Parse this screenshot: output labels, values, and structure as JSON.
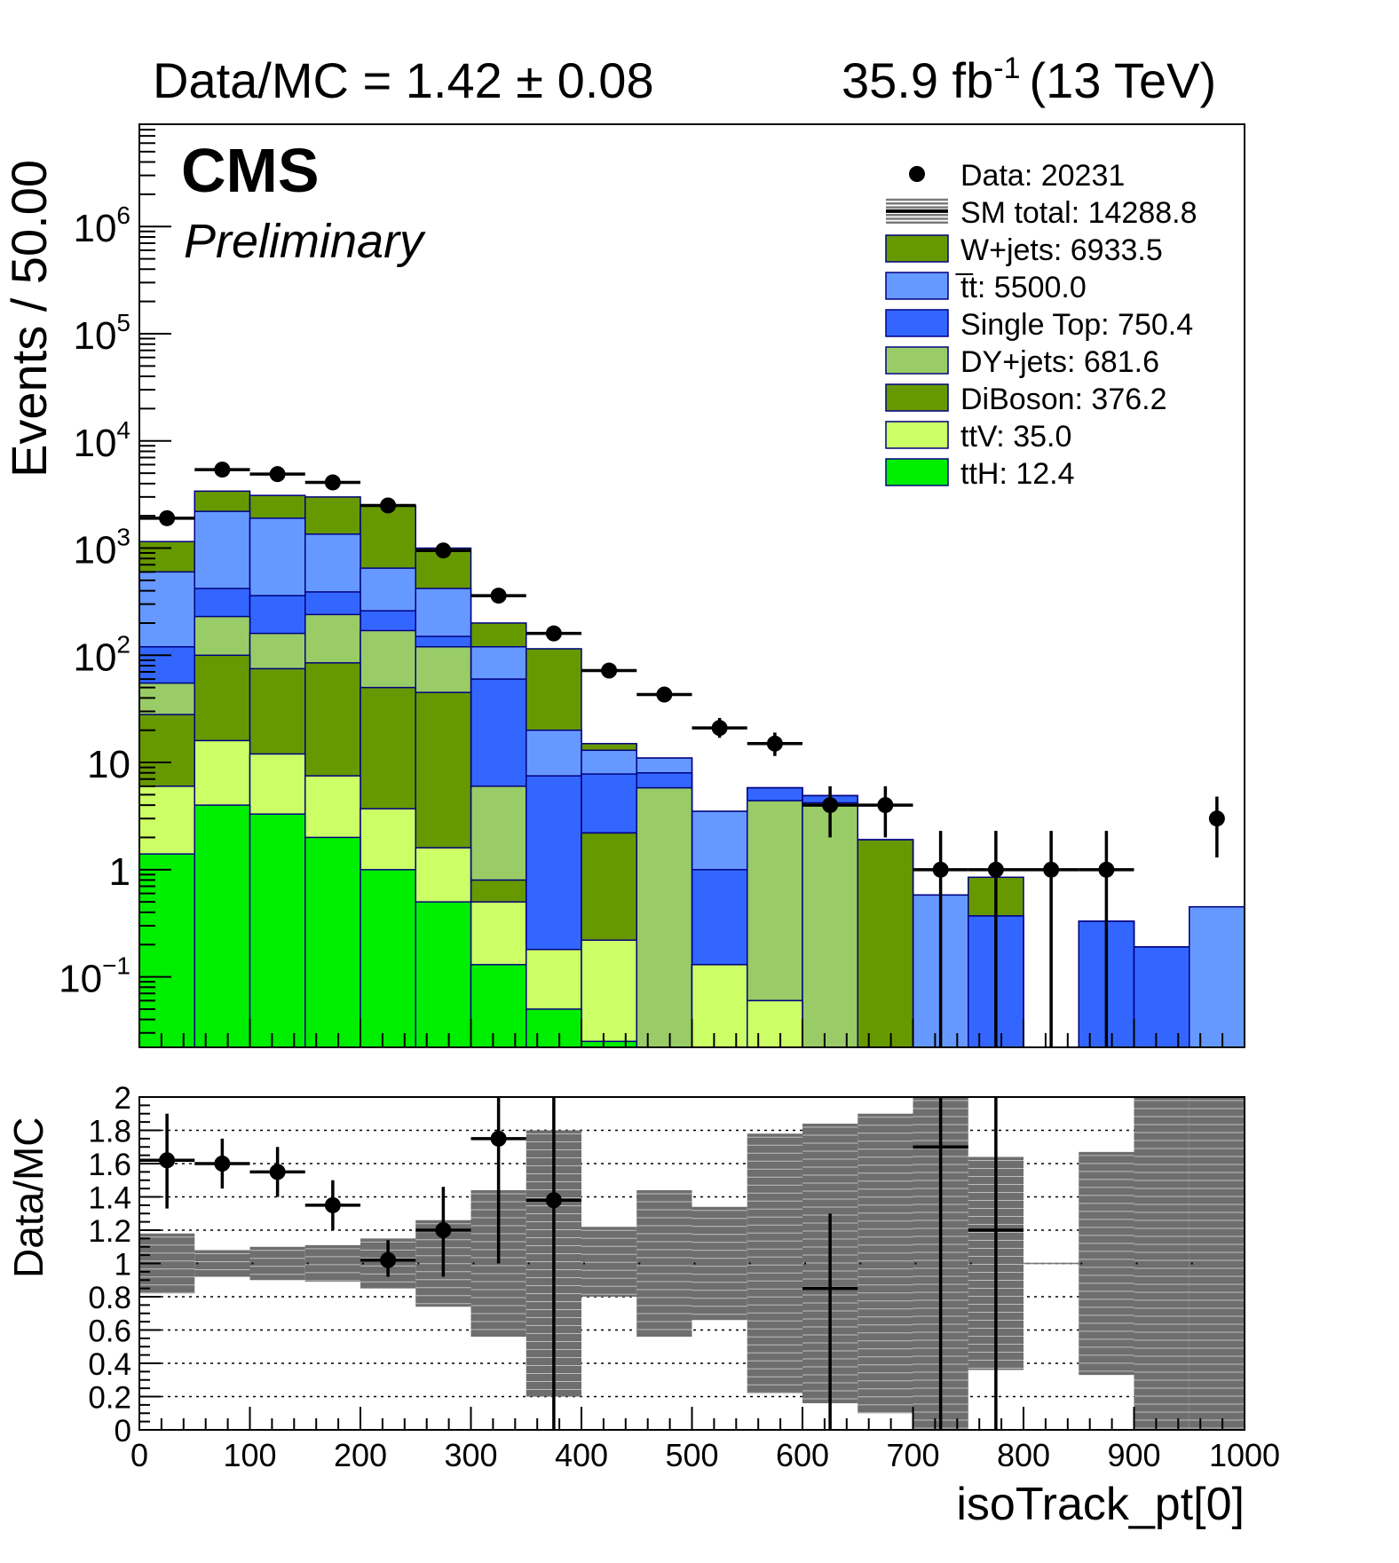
{
  "header": {
    "ratio_text": "Data/MC = 1.42 ± 0.08",
    "lumi_value": "35.9 fb",
    "lumi_exp": "-1",
    "lumi_energy": "(13 TeV)"
  },
  "cms_label": "CMS",
  "preliminary_label": "Preliminary",
  "chart_data": [
    {
      "type": "bar",
      "subtype": "stacked-histogram",
      "ylabel": "Events / 50.00",
      "yscale": "log",
      "xlim": [
        0,
        1000
      ],
      "ylim": [
        0.022,
        9000000
      ],
      "bin_edges": [
        0,
        50,
        100,
        150,
        200,
        250,
        300,
        350,
        400,
        450,
        500,
        550,
        600,
        650,
        700,
        750,
        800,
        850,
        900,
        950,
        1000
      ],
      "y_tick_labels": [
        {
          "value": 0.1,
          "base": "10",
          "exp": "−1"
        },
        {
          "value": 1,
          "base": "1",
          "exp": ""
        },
        {
          "value": 10,
          "base": "10",
          "exp": ""
        },
        {
          "value": 100,
          "base": "10",
          "exp": "2"
        },
        {
          "value": 1000,
          "base": "10",
          "exp": "3"
        },
        {
          "value": 10000,
          "base": "10",
          "exp": "4"
        },
        {
          "value": 100000,
          "base": "10",
          "exp": "5"
        },
        {
          "value": 1000000,
          "base": "10",
          "exp": "6"
        }
      ],
      "legend": {
        "placement": "top-right",
        "entries": [
          {
            "key": "data",
            "label": "Data: 20231"
          },
          {
            "key": "sm",
            "label": "SM total: 14288.8"
          },
          {
            "key": "wjets",
            "label": "W+jets: 6933.5",
            "color": "#669900"
          },
          {
            "key": "ttbar",
            "label": "t̅t: 5500.0",
            "color": "#6699ff"
          },
          {
            "key": "singletop",
            "label": "Single Top: 750.4",
            "color": "#3366ff"
          },
          {
            "key": "dy",
            "label": "DY+jets: 681.6",
            "color": "#99cc66"
          },
          {
            "key": "diboson",
            "label": "DiBoson: 376.2",
            "color": "#669900"
          },
          {
            "key": "ttv",
            "label": "ttV: 35.0",
            "color": "#ccff66"
          },
          {
            "key": "tth",
            "label": "ttH: 12.4",
            "color": "#00ee00"
          }
        ]
      },
      "series_stack_order": [
        "tth",
        "ttv",
        "diboson",
        "dy",
        "singletop",
        "ttbar",
        "wjets"
      ],
      "series": [
        {
          "key": "tth",
          "color": "#00ee00",
          "cumulative": [
            1.4,
            4.0,
            3.3,
            2.0,
            1.0,
            0.5,
            0.13,
            0.05,
            0.025,
            0,
            0,
            0,
            0,
            0,
            0,
            0,
            0,
            0,
            0,
            0
          ]
        },
        {
          "key": "ttv",
          "color": "#ccff66",
          "cumulative": [
            6.0,
            16.0,
            12.0,
            7.5,
            3.7,
            1.6,
            0.5,
            0.18,
            0.22,
            0,
            0.13,
            0.06,
            0,
            0,
            0,
            0,
            0,
            0,
            0,
            0
          ]
        },
        {
          "key": "diboson",
          "color": "#669900",
          "cumulative": [
            28,
            100,
            75,
            85,
            50,
            45,
            0.8,
            0.18,
            2.2,
            0,
            0.13,
            0.06,
            0,
            1.9,
            0,
            0,
            0,
            0,
            0,
            0
          ]
        },
        {
          "key": "dy",
          "color": "#99cc66",
          "cumulative": [
            55,
            230,
            160,
            240,
            170,
            120,
            6,
            0.18,
            2.2,
            5.8,
            0.13,
            4.4,
            4.2,
            1.9,
            0,
            0,
            0,
            0,
            0,
            0
          ]
        },
        {
          "key": "singletop",
          "color": "#3366ff",
          "cumulative": [
            120,
            420,
            360,
            390,
            260,
            150,
            60,
            7.5,
            7.8,
            8.0,
            1.0,
            5.8,
            4.9,
            1.9,
            0,
            0.37,
            0,
            0.33,
            0.19,
            0
          ]
        },
        {
          "key": "ttbar",
          "color": "#6699ff",
          "cumulative": [
            600,
            2200,
            1900,
            1350,
            650,
            420,
            120,
            20,
            13,
            11,
            3.5,
            5.8,
            4.9,
            1.9,
            0.58,
            0.37,
            0,
            0.33,
            0.19,
            0.45
          ]
        },
        {
          "key": "wjets",
          "color": "#669900",
          "cumulative": [
            1150,
            3400,
            3100,
            3000,
            2500,
            1000,
            200,
            115,
            15,
            11,
            3.5,
            5.8,
            4.9,
            1.9,
            0.58,
            0.85,
            0,
            0.33,
            0.19,
            0.45
          ]
        }
      ],
      "data_points": [
        {
          "x": 25,
          "y": 1900,
          "lo": 1850,
          "hi": 1950
        },
        {
          "x": 75,
          "y": 5400,
          "lo": 5300,
          "hi": 5500
        },
        {
          "x": 125,
          "y": 4900,
          "lo": 4800,
          "hi": 5000
        },
        {
          "x": 175,
          "y": 4100,
          "lo": 4000,
          "hi": 4200
        },
        {
          "x": 225,
          "y": 2500,
          "lo": 2440,
          "hi": 2560
        },
        {
          "x": 275,
          "y": 950,
          "lo": 920,
          "hi": 980
        },
        {
          "x": 325,
          "y": 360,
          "lo": 340,
          "hi": 380
        },
        {
          "x": 375,
          "y": 160,
          "lo": 148,
          "hi": 172
        },
        {
          "x": 425,
          "y": 72,
          "lo": 64,
          "hi": 80
        },
        {
          "x": 475,
          "y": 43,
          "lo": 37,
          "hi": 50
        },
        {
          "x": 525,
          "y": 21,
          "lo": 17,
          "hi": 26
        },
        {
          "x": 575,
          "y": 15,
          "lo": 11.5,
          "hi": 19
        },
        {
          "x": 625,
          "y": 4,
          "lo": 2,
          "hi": 6
        },
        {
          "x": 675,
          "y": 4,
          "lo": 2,
          "hi": 6
        },
        {
          "x": 725,
          "y": 1,
          "lo": 0,
          "hi": 2.3
        },
        {
          "x": 775,
          "y": 1,
          "lo": 0,
          "hi": 2.3
        },
        {
          "x": 825,
          "y": 1,
          "lo": 0,
          "hi": 2.3
        },
        {
          "x": 875,
          "y": 1,
          "lo": 0,
          "hi": 2.3
        },
        {
          "x": 975,
          "y": 3,
          "lo": 1.3,
          "hi": 4.8
        }
      ],
      "data_xerr_bins": [
        0,
        1,
        2,
        3,
        4,
        5,
        6,
        7,
        8,
        9,
        10,
        11,
        12,
        13,
        14,
        15,
        16,
        17
      ]
    },
    {
      "type": "bar",
      "subtype": "ratio",
      "ylabel": "Data/MC",
      "xlabel": "isoTrack_pt[0]",
      "xlim": [
        0,
        1000
      ],
      "ylim": [
        0,
        2
      ],
      "x_tick_labels": [
        "0",
        "100",
        "200",
        "300",
        "400",
        "500",
        "600",
        "700",
        "800",
        "900",
        "1000"
      ],
      "y_tick_labels": [
        "0",
        "0.2",
        "0.4",
        "0.6",
        "0.8",
        "1",
        "1.2",
        "1.4",
        "1.6",
        "1.8",
        "2"
      ],
      "grid": "dotted-horizontal",
      "uncertainty_band": [
        [
          0.82,
          1.18
        ],
        [
          0.92,
          1.08
        ],
        [
          0.9,
          1.1
        ],
        [
          0.89,
          1.11
        ],
        [
          0.85,
          1.15
        ],
        [
          0.74,
          1.26
        ],
        [
          0.56,
          1.44
        ],
        [
          0.2,
          1.8
        ],
        [
          0.8,
          1.22
        ],
        [
          0.56,
          1.44
        ],
        [
          0.66,
          1.34
        ],
        [
          0.22,
          1.78
        ],
        [
          0.16,
          1.84
        ],
        [
          0.1,
          1.9
        ],
        [
          0,
          2
        ],
        [
          0.36,
          1.64
        ],
        [
          1.0,
          1.0
        ],
        [
          0.33,
          1.67
        ],
        [
          0,
          2
        ],
        [
          0,
          2
        ]
      ],
      "ratio_points": [
        {
          "x": 25,
          "y": 1.62,
          "lo": 1.33,
          "hi": 1.9
        },
        {
          "x": 75,
          "y": 1.6,
          "lo": 1.45,
          "hi": 1.75
        },
        {
          "x": 125,
          "y": 1.55,
          "lo": 1.4,
          "hi": 1.7
        },
        {
          "x": 175,
          "y": 1.35,
          "lo": 1.2,
          "hi": 1.5
        },
        {
          "x": 225,
          "y": 1.02,
          "lo": 0.92,
          "hi": 1.14
        },
        {
          "x": 275,
          "y": 1.2,
          "lo": 0.92,
          "hi": 1.46
        },
        {
          "x": 325,
          "y": 1.75,
          "lo": 1.0,
          "hi": 2.0
        },
        {
          "x": 375,
          "y": 1.38,
          "lo": 0,
          "hi": 2.0
        },
        {
          "x": 625,
          "y": 0.85,
          "lo": 0,
          "hi": 1.3
        },
        {
          "x": 725,
          "y": 1.7,
          "lo": 0,
          "hi": 2.0
        },
        {
          "x": 775,
          "y": 1.2,
          "lo": 0,
          "hi": 2.0
        }
      ]
    }
  ]
}
